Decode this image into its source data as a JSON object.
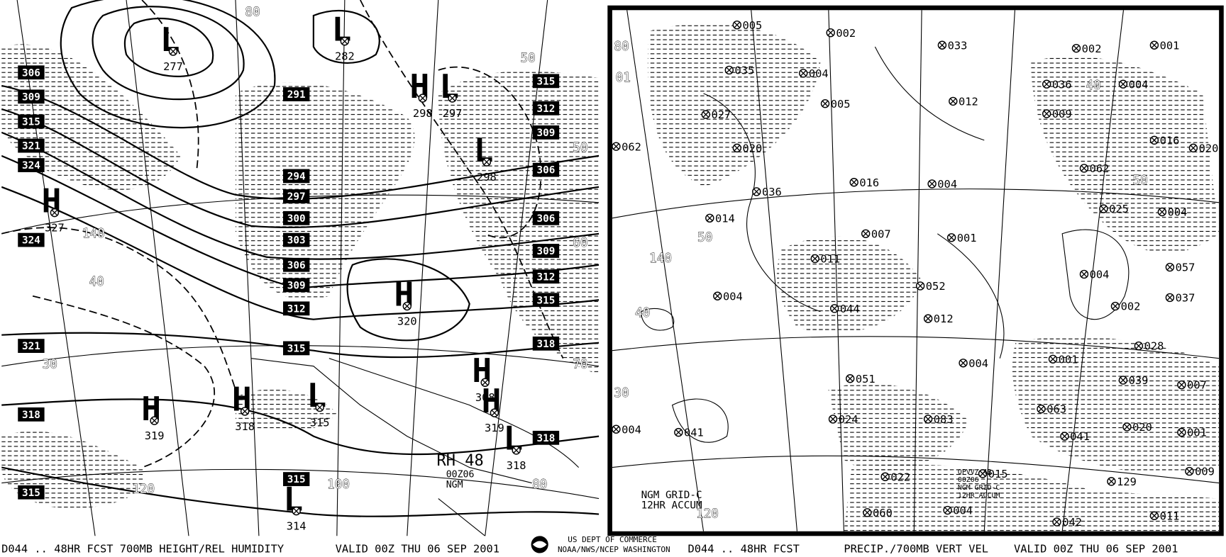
{
  "left_panel": {
    "boxed_labels": [
      "306",
      "309",
      "315",
      "321",
      "324",
      "324",
      "321",
      "318",
      "315",
      "291",
      "294",
      "297",
      "300",
      "303",
      "306",
      "309",
      "312",
      "315",
      "315",
      "315",
      "312",
      "309",
      "306",
      "306",
      "309",
      "312",
      "315",
      "318",
      "318"
    ],
    "centers": [
      {
        "type": "L",
        "value": "277"
      },
      {
        "type": "L",
        "value": "282"
      },
      {
        "type": "H",
        "value": "298"
      },
      {
        "type": "L",
        "value": "297"
      },
      {
        "type": "L",
        "value": "298"
      },
      {
        "type": "H",
        "value": "327"
      },
      {
        "type": "H",
        "value": "320"
      },
      {
        "type": "H",
        "value": "308"
      },
      {
        "type": "H",
        "value": "319"
      },
      {
        "type": "L",
        "value": "318"
      },
      {
        "type": "H",
        "value": "319"
      },
      {
        "type": "H",
        "value": "318"
      },
      {
        "type": "L",
        "value": "315"
      },
      {
        "type": "L",
        "value": "314"
      }
    ],
    "contour_labels": [
      "80",
      "50",
      "140",
      "40",
      "30",
      "120",
      "100",
      "80",
      "70",
      "50",
      "60"
    ],
    "annotations": [
      "RH 48",
      "00Z06",
      "NGM"
    ]
  },
  "right_panel": {
    "values": [
      "005",
      "002",
      "033",
      "002",
      "001",
      "035",
      "004",
      "005",
      "012",
      "036",
      "004",
      "027",
      "009",
      "020",
      "016",
      "020",
      "062",
      "062",
      "036",
      "016",
      "004",
      "025",
      "004",
      "014",
      "007",
      "001",
      "011",
      "004",
      "057",
      "004",
      "052",
      "037",
      "044",
      "002",
      "012",
      "028",
      "004",
      "001",
      "051",
      "039",
      "007",
      "063",
      "083",
      "024",
      "001",
      "041",
      "020",
      "004",
      "041",
      "015",
      "022",
      "129",
      "009",
      "060",
      "004",
      "042",
      "011"
    ],
    "contour_labels": [
      "80",
      "01",
      "140",
      "50",
      "40",
      "30",
      "120",
      "50",
      "40"
    ],
    "annotations": [
      "NGM GRID-C",
      "12HR ACCUM"
    ],
    "legend_box": [
      "QPVV/ 4B",
      "00Z06",
      "NGM GRID-C",
      "12HR ACCUM"
    ]
  },
  "footer": {
    "left_title": "D044 .. 48HR FCST 700MB HEIGHT/REL HUMIDITY",
    "left_valid": "VALID 00Z THU 06 SEP 2001",
    "agency_1": "US DEPT OF COMMERCE",
    "agency_2": "NOAA/NWS/NCEP WASHINGTON",
    "right_title": "D044 .. 48HR FCST",
    "right_subtitle": "PRECIP./700MB VERT VEL",
    "right_valid": "VALID 00Z THU 06 SEP 2001"
  }
}
